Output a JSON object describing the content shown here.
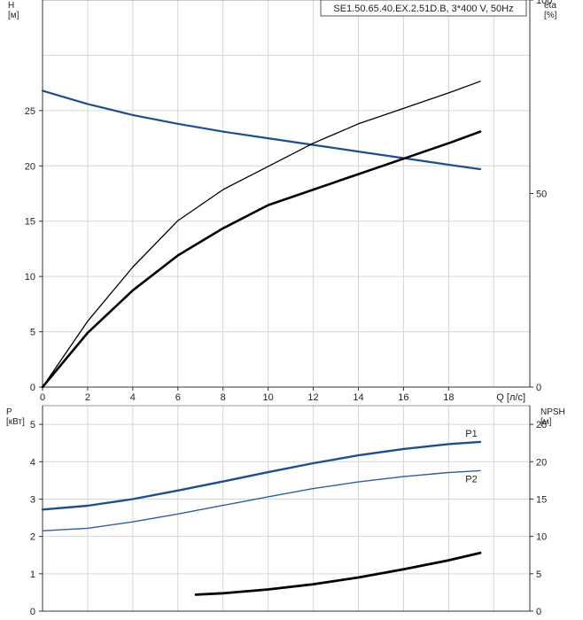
{
  "chart_data": [
    {
      "type": "line",
      "title": "SE1.50.65.40.EX.2.51D.B, 3*400 V, 50Hz",
      "xlabel": "Q [л/с]",
      "ylabel_left": "H\n[м]",
      "ylabel_right": "eta\n[%]",
      "xlim": [
        0,
        21.6
      ],
      "x_ticks": [
        0,
        2,
        4,
        6,
        8,
        10,
        12,
        14,
        16,
        18
      ],
      "ylim_left": [
        0,
        35
      ],
      "y_ticks_left": [
        0,
        5,
        10,
        15,
        20,
        25
      ],
      "ylim_right": [
        0,
        100
      ],
      "y_ticks_right": [
        0,
        50,
        100
      ],
      "grid": true,
      "series": [
        {
          "axis": "left",
          "color": "#1f4e8c",
          "width": 2.2,
          "x": [
            0,
            2,
            4,
            6,
            8,
            10,
            12,
            14,
            16,
            18,
            19.4
          ],
          "y": [
            26.8,
            25.6,
            24.6,
            23.8,
            23.1,
            22.5,
            21.9,
            21.3,
            20.7,
            20.1,
            19.7
          ]
        },
        {
          "axis": "right",
          "color": "#000000",
          "width": 1.3,
          "x": [
            0,
            2,
            4,
            6,
            8,
            10,
            12,
            14,
            16,
            18,
            19.4
          ],
          "y": [
            0,
            17,
            31,
            43,
            51,
            57,
            63,
            68,
            72,
            76,
            79
          ]
        },
        {
          "axis": "right",
          "color": "#000000",
          "width": 2.6,
          "x": [
            0,
            2,
            4,
            6,
            8,
            10,
            12,
            14,
            16,
            18,
            19.4
          ],
          "y": [
            0,
            14,
            25,
            34,
            41,
            47,
            51,
            55,
            59,
            63,
            66
          ]
        }
      ]
    },
    {
      "type": "line",
      "ylabel_left": "P\n[кВт]",
      "ylabel_right": "NPSH\n[м]",
      "xlim": [
        0,
        21.6
      ],
      "ylim_left": [
        0,
        5.5
      ],
      "y_ticks_left": [
        0,
        1,
        2,
        3,
        4,
        5
      ],
      "ylim_right": [
        0,
        27.5
      ],
      "y_ticks_right": [
        0,
        5,
        10,
        15,
        20,
        25
      ],
      "grid": true,
      "series": [
        {
          "name": "P1",
          "axis": "left",
          "color": "#1f4e8c",
          "width": 2.4,
          "x": [
            0,
            2,
            4,
            6,
            8,
            10,
            12,
            14,
            16,
            18,
            19.4
          ],
          "y": [
            2.72,
            2.82,
            3.0,
            3.23,
            3.47,
            3.72,
            3.96,
            4.17,
            4.34,
            4.47,
            4.53
          ]
        },
        {
          "name": "P2",
          "axis": "left",
          "color": "#2d5f9e",
          "width": 1.4,
          "x": [
            0,
            2,
            4,
            6,
            8,
            10,
            12,
            14,
            16,
            18,
            19.4
          ],
          "y": [
            2.15,
            2.22,
            2.39,
            2.6,
            2.83,
            3.06,
            3.28,
            3.46,
            3.6,
            3.71,
            3.76
          ]
        },
        {
          "axis": "right",
          "color": "#000000",
          "width": 2.8,
          "x": [
            6.8,
            8,
            10,
            12,
            14,
            16,
            18,
            19.4
          ],
          "y": [
            2.2,
            2.4,
            2.9,
            3.6,
            4.5,
            5.6,
            6.8,
            7.8
          ]
        }
      ]
    }
  ]
}
